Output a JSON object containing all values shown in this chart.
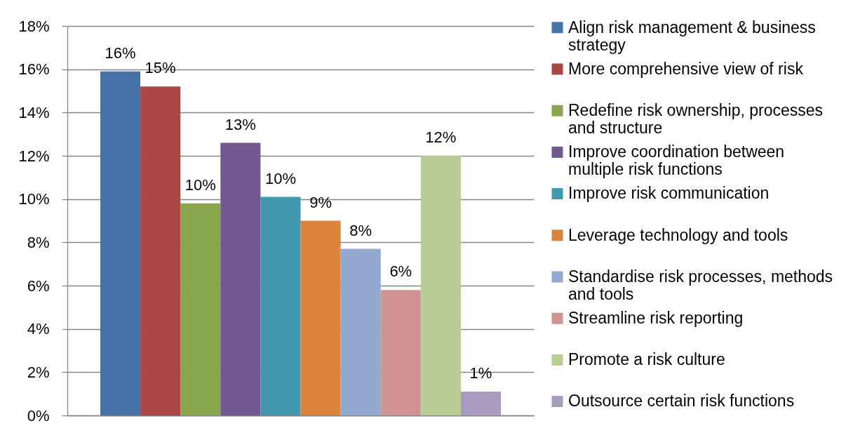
{
  "chart_data": {
    "type": "bar",
    "categories": [
      null
    ],
    "series": [
      {
        "name": "Align risk management & business strategy",
        "color": "#4572a7",
        "values": [
          15.9
        ],
        "value_labels": [
          "16%"
        ]
      },
      {
        "name": "More comprehensive view of risk",
        "color": "#aa4643",
        "values": [
          15.2
        ],
        "value_labels": [
          "15%"
        ]
      },
      {
        "name": "Redefine risk ownership, processes and structure",
        "color": "#89a54e",
        "values": [
          9.8
        ],
        "value_labels": [
          "10%"
        ]
      },
      {
        "name": "Improve coordination between multiple risk functions",
        "color": "#71588f",
        "values": [
          12.6
        ],
        "value_labels": [
          "13%"
        ]
      },
      {
        "name": "Improve risk communication",
        "color": "#4198af",
        "values": [
          10.1
        ],
        "value_labels": [
          "10%"
        ]
      },
      {
        "name": "Leverage technology and tools",
        "color": "#db843d",
        "values": [
          9.0
        ],
        "value_labels": [
          "9%"
        ]
      },
      {
        "name": "Standardise risk processes, methods and tools",
        "color": "#93a9cf",
        "values": [
          7.7
        ],
        "value_labels": [
          "8%"
        ]
      },
      {
        "name": "Streamline risk reporting",
        "color": "#d19392",
        "values": [
          5.8
        ],
        "value_labels": [
          "6%"
        ]
      },
      {
        "name": "Promote a risk culture",
        "color": "#b9cd96",
        "values": [
          12.0
        ],
        "value_labels": [
          "12%"
        ]
      },
      {
        "name": "Outsource certain risk functions",
        "color": "#a99bbd",
        "values": [
          1.1
        ],
        "value_labels": [
          "1%"
        ]
      }
    ],
    "ylim": [
      0,
      18
    ],
    "yticks": [
      {
        "value": 0,
        "label": "0%"
      },
      {
        "value": 2,
        "label": "2%"
      },
      {
        "value": 4,
        "label": "4%"
      },
      {
        "value": 6,
        "label": "6%"
      },
      {
        "value": 8,
        "label": "8%"
      },
      {
        "value": 10,
        "label": "10%"
      },
      {
        "value": 12,
        "label": "12%"
      },
      {
        "value": 14,
        "label": "14%"
      },
      {
        "value": 16,
        "label": "16%"
      },
      {
        "value": 18,
        "label": "18%"
      }
    ],
    "grid": "y",
    "legend": "right",
    "tick_labels": "y"
  }
}
